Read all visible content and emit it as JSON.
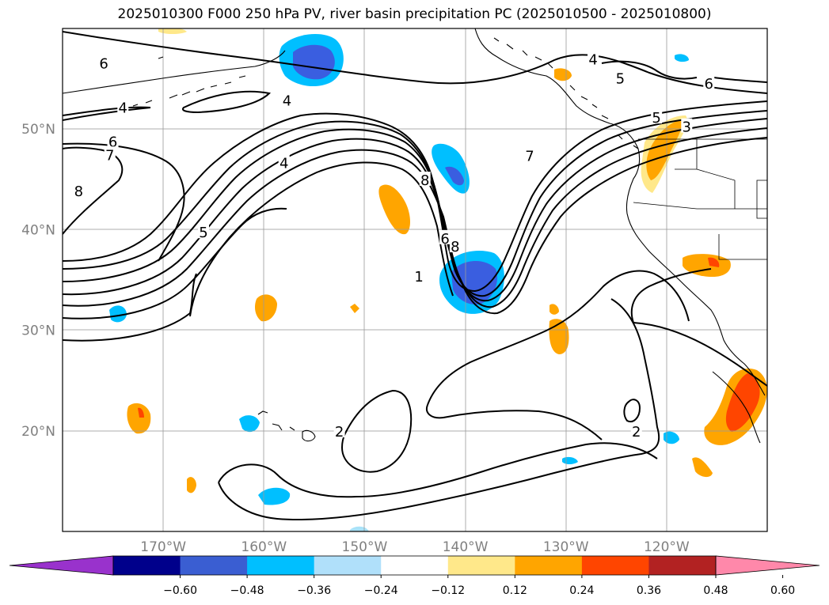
{
  "title": "2025010300 F000 250 hPa PV, river basin precipitation PC (2025010500 - 2025010800)",
  "map": {
    "lon_range": [
      -180,
      -110
    ],
    "lat_range": [
      10,
      60
    ],
    "lon_ticks": [
      {
        "value": -170,
        "label": "170°W"
      },
      {
        "value": -160,
        "label": "160°W"
      },
      {
        "value": -150,
        "label": "150°W"
      },
      {
        "value": -140,
        "label": "140°W"
      },
      {
        "value": -130,
        "label": "130°W"
      },
      {
        "value": -120,
        "label": "120°W"
      }
    ],
    "lat_ticks": [
      {
        "value": 20,
        "label": "20°N"
      },
      {
        "value": 30,
        "label": "30°N"
      },
      {
        "value": 40,
        "label": "40°N"
      },
      {
        "value": 50,
        "label": "50°N"
      }
    ],
    "contour_labels": [
      {
        "text": "6",
        "lon": -175.9,
        "lat": 56.5
      },
      {
        "text": "4",
        "lon": -174.0,
        "lat": 52.1
      },
      {
        "text": "4",
        "lon": -157.7,
        "lat": 52.8
      },
      {
        "text": "6",
        "lon": -175.0,
        "lat": 48.7
      },
      {
        "text": "7",
        "lon": -175.3,
        "lat": 47.4
      },
      {
        "text": "8",
        "lon": -178.4,
        "lat": 43.8
      },
      {
        "text": "4",
        "lon": -158.0,
        "lat": 46.6
      },
      {
        "text": "5",
        "lon": -166.0,
        "lat": 39.7
      },
      {
        "text": "8",
        "lon": -144.0,
        "lat": 44.9
      },
      {
        "text": "6",
        "lon": -142.0,
        "lat": 39.1
      },
      {
        "text": "8",
        "lon": -141.0,
        "lat": 38.3
      },
      {
        "text": "1",
        "lon": -144.6,
        "lat": 35.3
      },
      {
        "text": "7",
        "lon": -133.6,
        "lat": 47.3
      },
      {
        "text": "4",
        "lon": -127.3,
        "lat": 56.9
      },
      {
        "text": "5",
        "lon": -124.6,
        "lat": 55.0
      },
      {
        "text": "6",
        "lon": -115.8,
        "lat": 54.5
      },
      {
        "text": "5",
        "lon": -121.0,
        "lat": 51.1
      },
      {
        "text": "3",
        "lon": -118.0,
        "lat": 50.2
      },
      {
        "text": "2",
        "lon": -152.5,
        "lat": 19.9
      },
      {
        "text": "2",
        "lon": -123.0,
        "lat": 19.9
      }
    ],
    "precip_level_colors": {
      "-0.60": "#3a46c8",
      "-0.48": "#3a5ee0",
      "-0.36": "#00bfff",
      "-0.24": "#a9e2f8",
      "0.24": "#ffe88a",
      "0.36": "#ffa500",
      "0.48": "#ff4500",
      "0.60": "#b22222"
    }
  },
  "colorbar": {
    "colors": [
      "#9932cc",
      "#00008b",
      "#3a5ed2",
      "#00bfff",
      "#b0e0fa",
      "#ffffff",
      "#ffe88a",
      "#ffa500",
      "#ff4500",
      "#b22222",
      "#ff88aa"
    ],
    "ticks": [
      "−0.60",
      "−0.48",
      "−0.36",
      "−0.24",
      "−0.12",
      "0.12",
      "0.24",
      "0.36",
      "0.48",
      "0.60"
    ]
  }
}
